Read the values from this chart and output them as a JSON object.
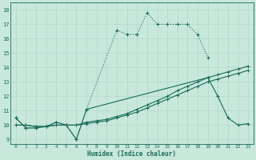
{
  "title": "",
  "xlabel": "Humidex (Indice chaleur)",
  "bg_color": "#c8e8dc",
  "line_color": "#1a6b5a",
  "grid_color": "#b0d8c8",
  "xlim": [
    -0.5,
    23.5
  ],
  "ylim": [
    8.7,
    18.5
  ],
  "yticks": [
    9,
    10,
    11,
    12,
    13,
    14,
    15,
    16,
    17,
    18
  ],
  "xticks": [
    0,
    1,
    2,
    3,
    4,
    5,
    6,
    7,
    8,
    9,
    10,
    11,
    12,
    13,
    14,
    15,
    16,
    17,
    18,
    19,
    20,
    21,
    22,
    23
  ],
  "line1_x": [
    0,
    1,
    2,
    3,
    4,
    5,
    6,
    7,
    10,
    11,
    12,
    13,
    14,
    15,
    16,
    17,
    18,
    19
  ],
  "line1_y": [
    10.5,
    9.8,
    9.8,
    9.9,
    10.2,
    10.0,
    9.0,
    11.1,
    16.6,
    16.3,
    16.3,
    17.8,
    17.0,
    17.0,
    17.0,
    17.0,
    16.3,
    14.7
  ],
  "line2_x": [
    0,
    1,
    2,
    3,
    4,
    5,
    6,
    7,
    19,
    20,
    21,
    22,
    23
  ],
  "line2_y": [
    10.5,
    9.8,
    9.8,
    9.9,
    10.2,
    10.0,
    9.0,
    11.1,
    13.3,
    12.0,
    10.5,
    10.0,
    10.1
  ],
  "line3_x": [
    0,
    1,
    2,
    3,
    4,
    5,
    6,
    7,
    8,
    9,
    10,
    11,
    12,
    13,
    14,
    15,
    16,
    17,
    18,
    19,
    20,
    21,
    22,
    23
  ],
  "line3_y": [
    10.0,
    10.0,
    9.9,
    9.9,
    10.0,
    10.0,
    10.0,
    10.2,
    10.3,
    10.4,
    10.6,
    10.8,
    11.1,
    11.4,
    11.7,
    12.0,
    12.4,
    12.7,
    13.0,
    13.3,
    13.5,
    13.7,
    13.9,
    14.1
  ],
  "line4_x": [
    0,
    1,
    2,
    3,
    4,
    5,
    6,
    7,
    8,
    9,
    10,
    11,
    12,
    13,
    14,
    15,
    16,
    17,
    18,
    19,
    20,
    21,
    22,
    23
  ],
  "line4_y": [
    10.0,
    10.0,
    9.9,
    9.9,
    10.0,
    10.0,
    10.0,
    10.1,
    10.2,
    10.3,
    10.5,
    10.7,
    10.9,
    11.2,
    11.5,
    11.8,
    12.1,
    12.4,
    12.7,
    13.0,
    13.2,
    13.4,
    13.6,
    13.8
  ],
  "ms": 2.5,
  "lw": 0.8
}
